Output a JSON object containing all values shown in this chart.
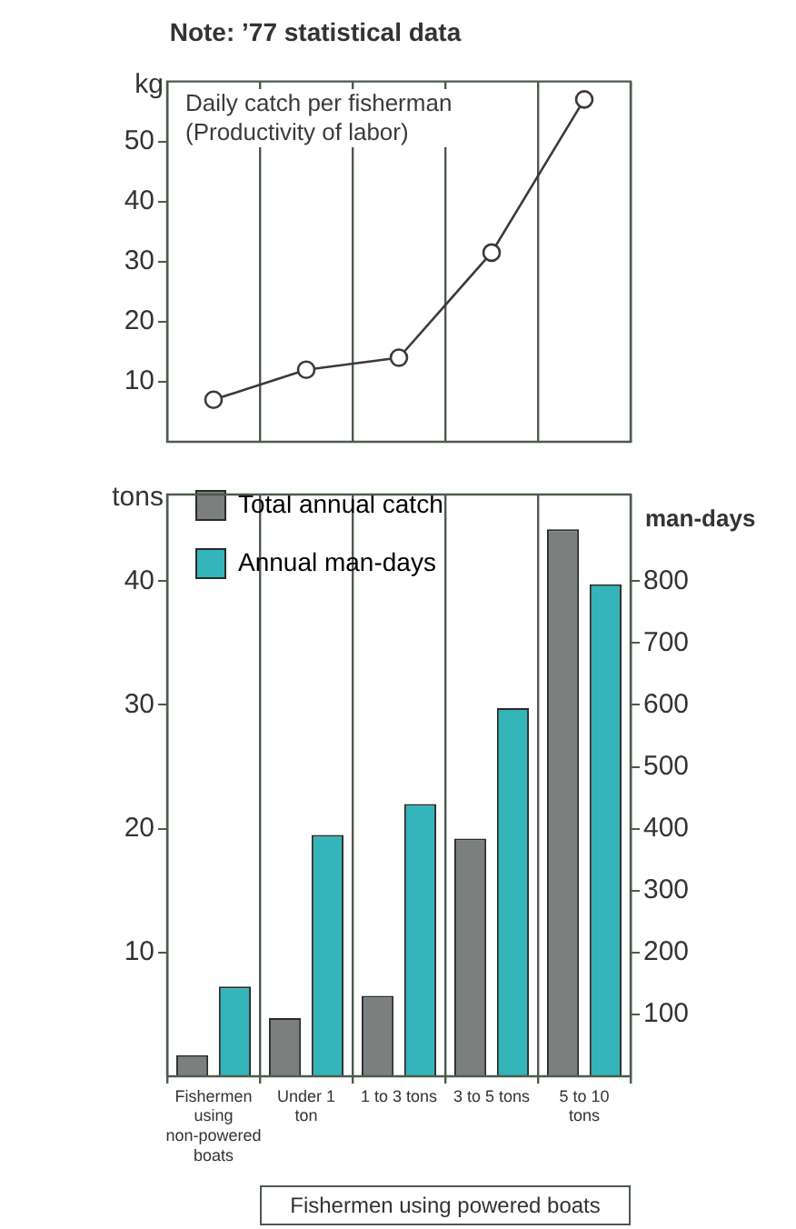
{
  "chart_data": [
    {
      "type": "line",
      "title": "Note: ’77 statistical data",
      "ylabel": "kg",
      "categories": [
        null,
        null,
        null,
        null,
        null
      ],
      "series": [
        {
          "name": "Daily catch per fisherman (Productivity of labor)",
          "color": "#3a3a3a",
          "values": [
            7,
            12,
            14,
            31.5,
            57
          ]
        }
      ],
      "ylim": [
        0,
        60
      ],
      "yticks": [
        10,
        20,
        30,
        40,
        50
      ],
      "grid": "x",
      "marker": "circle",
      "line_style": "solid",
      "tick_labels": "y"
    },
    {
      "type": "bar",
      "ylabel": "tons",
      "y2label": "man-days",
      "categories": [
        "Fishermen using non-powered boats",
        "Under 1 ton",
        "1 to 3 tons",
        "3 to 5 tons",
        "5 to 10 tons"
      ],
      "series": [
        {
          "name": "Total annual catch",
          "color": "#7b7f7e",
          "values": [
            1.7,
            4.7,
            6.5,
            19.2,
            44.2
          ]
        },
        {
          "name": "Annual man-days",
          "color": "#33b5b9",
          "axis": "y2",
          "values": [
            145,
            390,
            440,
            595,
            795
          ]
        }
      ],
      "ylim": [
        0,
        47
      ],
      "yticks": [
        10,
        20,
        30,
        40
      ],
      "y2lim": [
        0,
        940
      ],
      "y2ticks": [
        100,
        200,
        300,
        400,
        500,
        600,
        700,
        800
      ],
      "grid": "x",
      "legend": "top left",
      "annotations": [
        "Fishermen using powered boats"
      ]
    }
  ]
}
